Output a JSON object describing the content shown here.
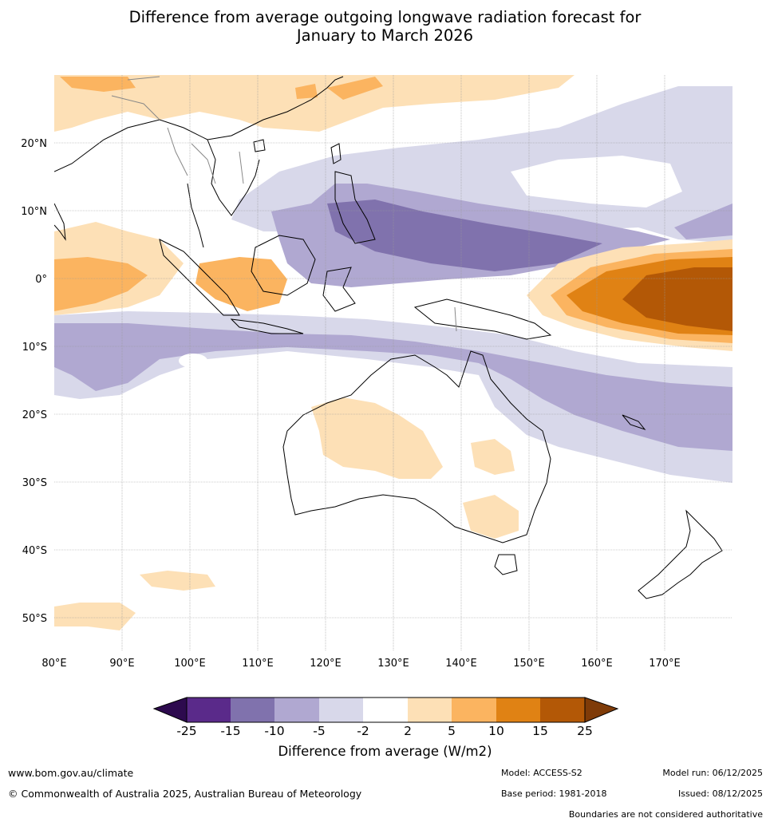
{
  "title_line1": "Difference from average outgoing longwave radiation forecast for",
  "title_line2": "January to March 2026",
  "lat_labels": [
    "20°N",
    "10°N",
    "0°",
    "10°S",
    "20°S",
    "30°S",
    "40°S",
    "50°S"
  ],
  "lon_labels": [
    "80°E",
    "90°E",
    "100°E",
    "110°E",
    "120°E",
    "130°E",
    "140°E",
    "150°E",
    "160°E",
    "170°E"
  ],
  "legend": {
    "ticks": [
      "-25",
      "-15",
      "-10",
      "-5",
      "-2",
      "2",
      "5",
      "10",
      "15",
      "25"
    ],
    "colors": [
      "#2d0a4e",
      "#5a2a8a",
      "#8072ad",
      "#b0a8d1",
      "#d8d8ea",
      "#ffffff",
      "#fde0b6",
      "#fbb460",
      "#e08214",
      "#b35806",
      "#7f3b08"
    ],
    "title": "Difference from average (W/m2)"
  },
  "footer": {
    "website": "www.bom.gov.au/climate",
    "copyright": "© Commonwealth of Australia 2025, Australian Bureau of Meteorology",
    "model": "Model: ACCESS-S2",
    "base_period": "Base period: 1981-2018",
    "model_run": "Model run: 06/12/2025",
    "issued": "Issued: 08/12/2025",
    "disclaimer": "Boundaries are not considered authoritative"
  }
}
